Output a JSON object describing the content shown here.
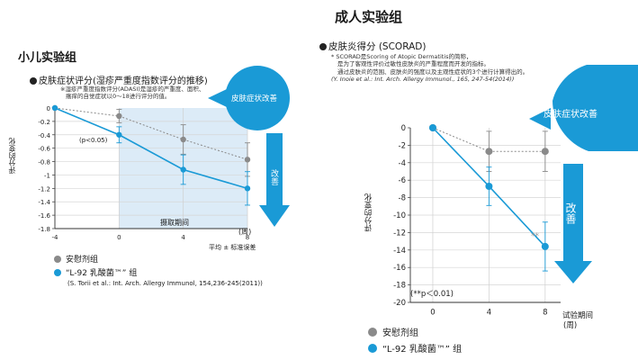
{
  "left": {
    "heading": "小儿实验组",
    "chart_title": "皮肤症状评分(湿疹严重度指数评分的推移)",
    "note_lines": [
      "※湿疹严重度指数评分(ADASI)是湿疹的严重度、面积、",
      "瘙痒的自觉症状以0～18进行评分的值。"
    ],
    "ylabel": "评分的变化",
    "intake_label": "摄取期间",
    "xunit": "(周)",
    "stat_note": "平均 ± 标准误差",
    "p_note": "(p<0.05)",
    "badge": "皮肤症状改善",
    "arrow_label": "改善",
    "legend_placebo": "安慰剂组",
    "legend_l92": "“L-92 乳酸菌™” 组",
    "citation": "(S. Torii et al.: Int. Arch. Allergy Immunol, 154,236-245(2011))"
  },
  "right": {
    "heading": "成人实验组",
    "chart_title": "皮肤炎得分 (SCORAD)",
    "note_lines": [
      "* SCORAD是Scoring of Atopic Dermatitis的简称，",
      "是为了客观性评价过敏性皮肤炎的严重程度而开发的指标。",
      "通过皮肤炎的范围、皮肤炎的强度以及主观性症状的3个进行计算得出的。",
      "(Y. Inoie et al.: Int. Arch. Allergy Immunol., 165, 247-54(2014))"
    ],
    "ylabel": "评分的变化",
    "xlabel": "试验期间",
    "xunit": "(周)",
    "p_note": "(**p＜0.01)",
    "sig_mark": "**",
    "badge": "皮肤症状改善",
    "arrow_label": "改善",
    "legend_placebo": "安慰剂组",
    "legend_l92": "“L-92 乳酸菌™” 组"
  },
  "colors": {
    "blue": "#1a9ad6",
    "grey": "#8a8a8a",
    "shade": "#dcebf7",
    "badge": "#1a9ad6"
  },
  "chart_data": [
    {
      "type": "line",
      "title": "皮肤症状评分(湿疹严重度指数评分的推移)",
      "x": [
        -4,
        0,
        4,
        8
      ],
      "xlabel": "(周)",
      "ylabel": "评分的变化",
      "ylim": [
        -1.8,
        0
      ],
      "yticks": [
        0,
        -0.2,
        -0.4,
        -0.6,
        -0.8,
        -1,
        -1.2,
        -1.4,
        -1.6,
        -1.8
      ],
      "xticks": [
        -4,
        0,
        4,
        8
      ],
      "grid": true,
      "shaded_x_range": [
        0,
        8
      ],
      "series": [
        {
          "name": "安慰剂组",
          "values": [
            0,
            -0.12,
            -0.47,
            -0.77
          ],
          "err": [
            0,
            0.1,
            0.22,
            0.25
          ]
        },
        {
          "name": "“L-92 乳酸菌™” 组",
          "values": [
            0,
            -0.4,
            -0.92,
            -1.2
          ],
          "err": [
            0,
            0.12,
            0.22,
            0.25
          ]
        }
      ]
    },
    {
      "type": "line",
      "title": "皮肤炎得分 (SCORAD)",
      "x": [
        0,
        4,
        8
      ],
      "xlabel": "试验期间 (周)",
      "ylabel": "评分的变化",
      "ylim": [
        -20,
        0
      ],
      "yticks": [
        0,
        -2,
        -4,
        -6,
        -8,
        -10,
        -12,
        -14,
        -16,
        -18,
        -20
      ],
      "xticks": [
        0,
        4,
        8
      ],
      "grid": true,
      "series": [
        {
          "name": "安慰剂组",
          "values": [
            0,
            -2.7,
            -2.7
          ],
          "err": [
            0,
            2.3,
            2.3
          ]
        },
        {
          "name": "“L-92 乳酸菌™” 组",
          "values": [
            0,
            -6.7,
            -13.6
          ],
          "err": [
            0,
            2.2,
            2.8
          ]
        }
      ]
    }
  ]
}
